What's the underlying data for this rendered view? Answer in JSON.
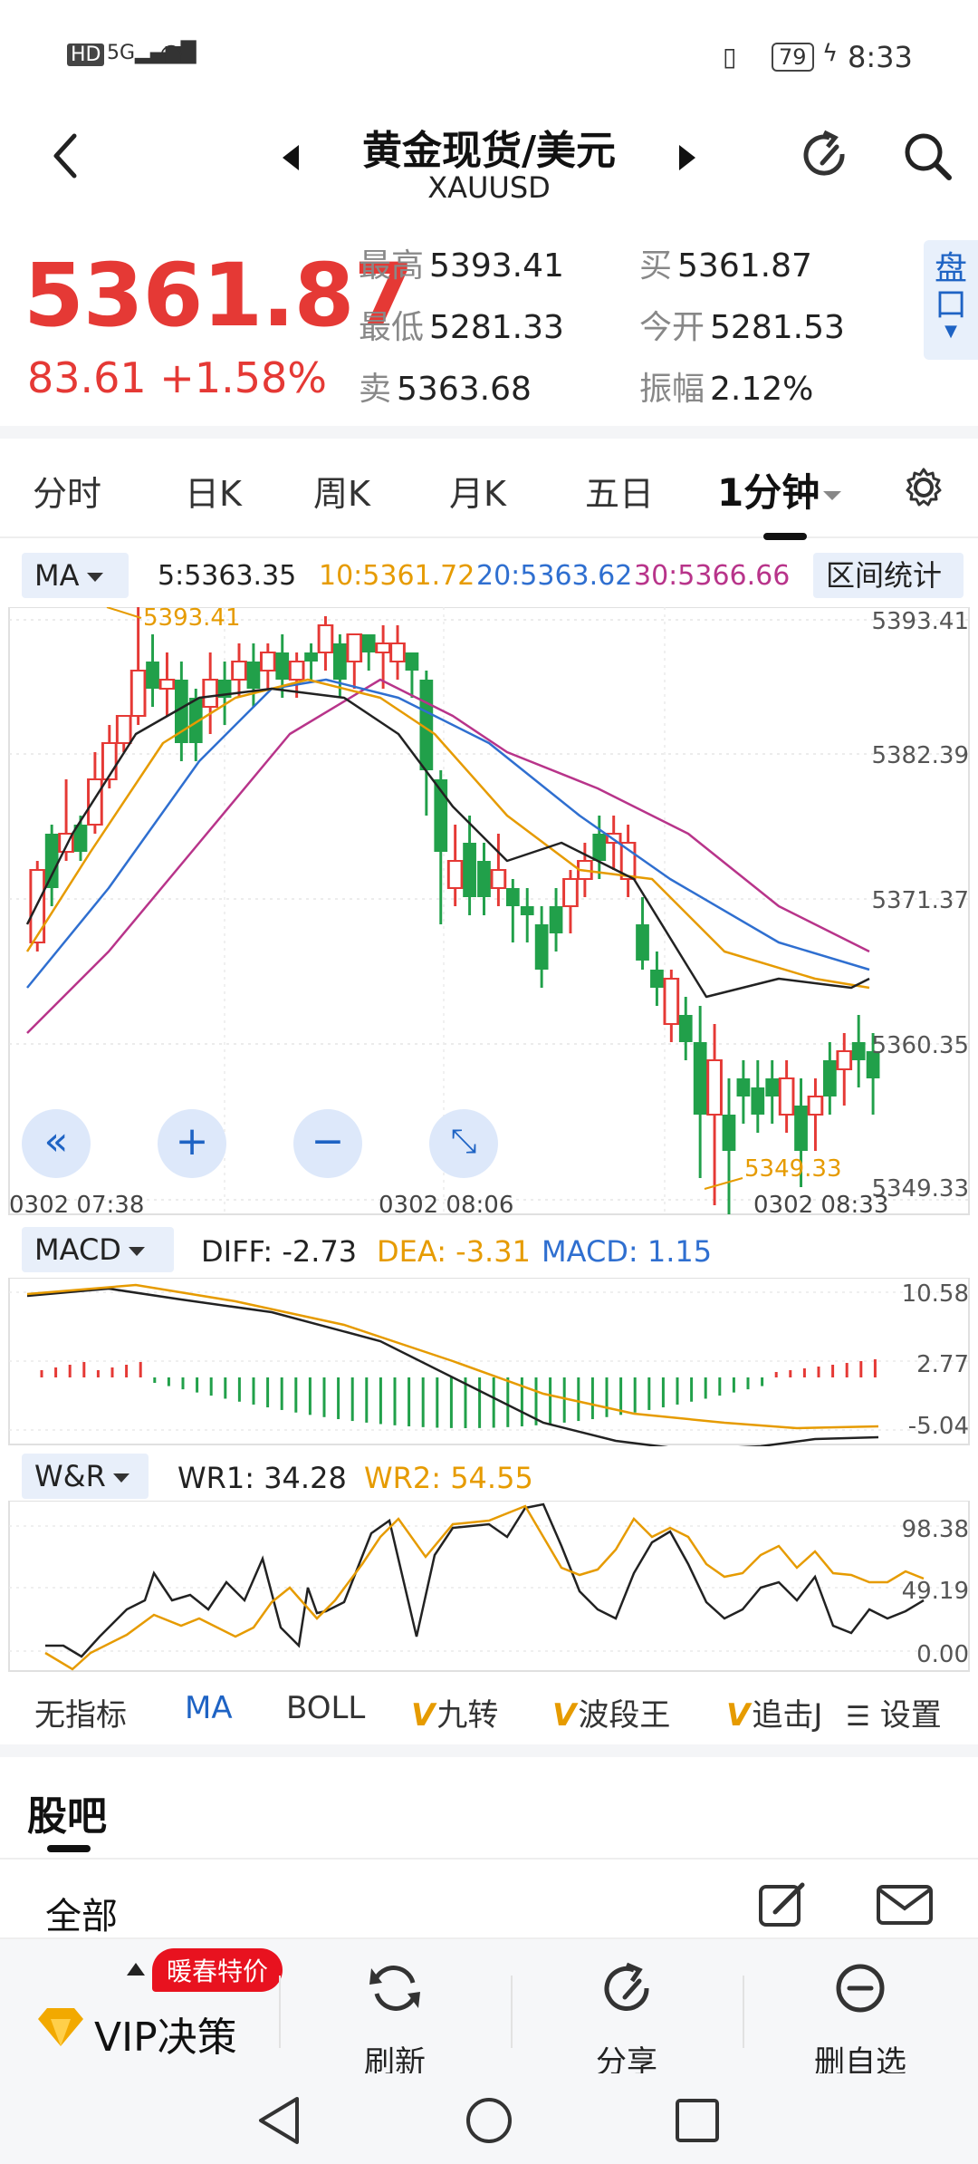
{
  "status_bar": {
    "left": "HD 5G",
    "battery": "79",
    "time": "8:33"
  },
  "header": {
    "title": "黄金现货/美元",
    "subtitle": "XAUUSD"
  },
  "quote": {
    "price": "5361.87",
    "change": "83.61  +1.58%",
    "high_label": "最高",
    "high": "5393.41",
    "low_label": "最低",
    "low": "5281.33",
    "sell_label": "卖",
    "sell": "5363.68",
    "buy_label": "买",
    "buy": "5361.87",
    "open_label": "今开",
    "open": "5281.53",
    "amp_label": "振幅",
    "amp": "2.12%",
    "pankou": "盘口"
  },
  "tabs": [
    "分时",
    "日K",
    "周K",
    "月K",
    "五日",
    "1分钟"
  ],
  "ma_bar": {
    "selector": "MA",
    "ma5": "5:5363.35",
    "ma10": "10:5361.72",
    "ma20": "20:5363.62",
    "ma30": "30:5366.66",
    "range_button": "区间统计"
  },
  "kline": {
    "y_labels": [
      "5393.41",
      "5382.39",
      "5371.37",
      "5360.35",
      "5349.33"
    ],
    "high_label": "5393.41",
    "low_label": "5349.33",
    "x_labels": [
      "0302  07:38",
      "0302  08:06",
      "0302  08:33"
    ]
  },
  "macd": {
    "selector": "MACD",
    "diff": "DIFF: -2.73",
    "dea": "DEA: -3.31",
    "macd": "MACD: 1.15",
    "y_labels": [
      "10.58",
      "2.77",
      "-5.04"
    ]
  },
  "wr": {
    "selector": "W&R",
    "wr1": "WR1: 34.28",
    "wr2": "WR2: 54.55",
    "y_labels": [
      "98.38",
      "49.19",
      "0.00"
    ]
  },
  "indicators": [
    "无指标",
    "MA",
    "BOLL",
    "九转",
    "波段王",
    "追击J"
  ],
  "indicator_settings": "设置",
  "guba": {
    "title": "股吧",
    "filter": "全部"
  },
  "bottom_nav": {
    "vip": "VIP决策",
    "vip_badge": "暖春特价",
    "refresh": "刷新",
    "share": "分享",
    "remove": "删自选"
  },
  "colors": {
    "up": "#e53935",
    "down": "#21a04a",
    "ma5": "#222222",
    "ma10": "#e69b00",
    "ma20": "#2f6fd0",
    "ma30": "#b8348a"
  }
}
